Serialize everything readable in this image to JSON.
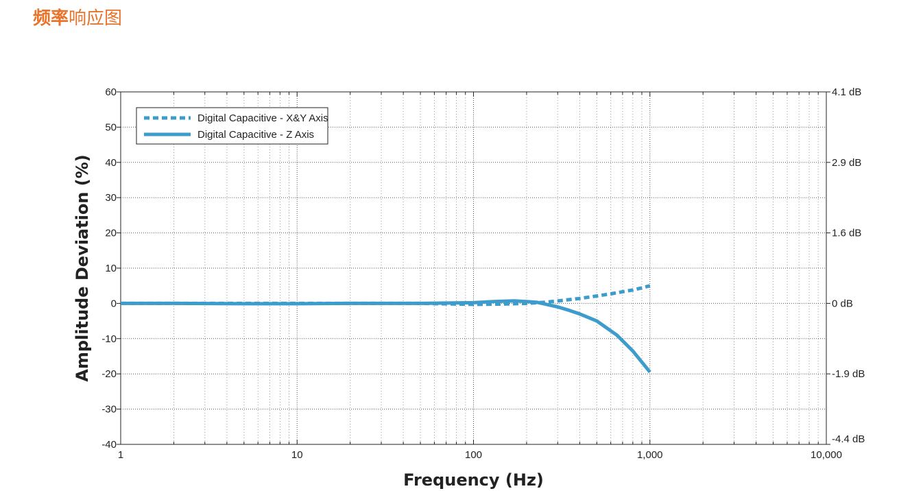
{
  "page": {
    "title_strong": "频率",
    "title_rest": "响应图"
  },
  "colors": {
    "accent": "#e8732a",
    "series": "#3d9ccc",
    "grid": "#555555",
    "axis": "#222222"
  },
  "chart_data": {
    "type": "line",
    "title": "",
    "xlabel": "Frequency (Hz)",
    "ylabel": "Amplitude Deviation (%)",
    "x_scale": "log",
    "xlim": [
      1,
      10000
    ],
    "ylim": [
      -40,
      60
    ],
    "x_ticks": [
      1,
      10,
      100,
      1000,
      10000
    ],
    "x_tick_labels": [
      "1",
      "10",
      "100",
      "1,000",
      "10,000"
    ],
    "y_ticks": [
      60,
      50,
      40,
      30,
      20,
      10,
      0,
      -10,
      -20,
      -30,
      -40
    ],
    "y_tick_labels": [
      "60",
      "50",
      "40",
      "30",
      "20",
      "10",
      "0",
      "-10",
      "-20",
      "-30",
      "-40"
    ],
    "y2_ticks": [
      60,
      40,
      20,
      0,
      -20,
      -40
    ],
    "y2_tick_labels": [
      "4.1 dB",
      "2.9 dB",
      "1.6 dB",
      "0 dB",
      "-1.9 dB",
      "-4.4 dB"
    ],
    "grid": true,
    "legend_position": "top-left",
    "series": [
      {
        "name": "Digital Capacitive - X&Y Axis",
        "style": "dotted",
        "x": [
          1,
          2,
          5,
          10,
          20,
          50,
          100,
          150,
          200,
          250,
          300,
          400,
          500,
          600,
          700,
          800,
          900,
          1000
        ],
        "y": [
          0,
          0,
          0,
          0,
          0,
          0,
          -0.3,
          -0.2,
          0,
          0.3,
          0.7,
          1.4,
          2.1,
          2.7,
          3.3,
          3.8,
          4.4,
          5
        ]
      },
      {
        "name": "Digital Capacitive - Z Axis",
        "style": "solid",
        "x": [
          1,
          2,
          5,
          10,
          20,
          50,
          100,
          130,
          170,
          200,
          230,
          260,
          300,
          350,
          400,
          500,
          650,
          800,
          1000
        ],
        "y": [
          0,
          0,
          -0.1,
          -0.1,
          0,
          0,
          0.2,
          0.5,
          0.7,
          0.5,
          0.3,
          -0.3,
          -1,
          -2,
          -3,
          -5,
          -9,
          -13.5,
          -19.5
        ]
      }
    ]
  }
}
